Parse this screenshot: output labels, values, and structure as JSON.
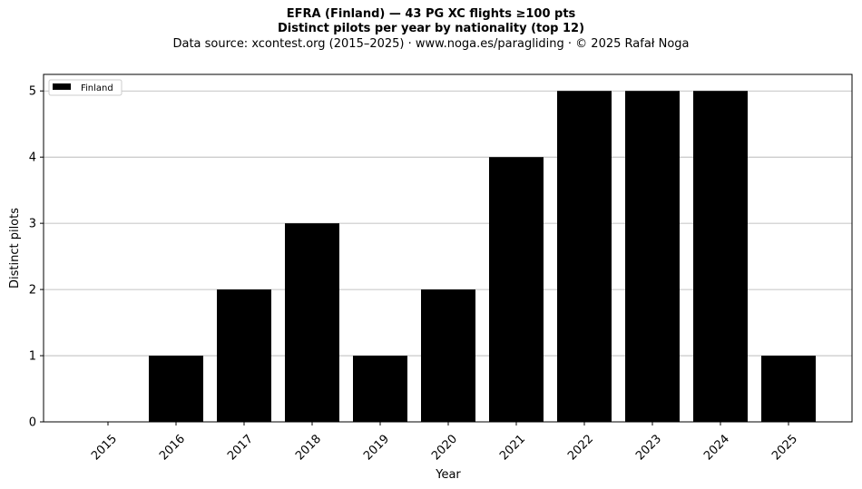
{
  "header": {
    "title": "EFRA (Finland)  —  43 PG XC flights ≥100 pts",
    "subtitle": "Distinct pilots per year by nationality (top 12)",
    "source": "Data source: xcontest.org (2015–2025)  ·  www.noga.es/paragliding  ·  © 2025 Rafał Noga"
  },
  "chart_data": {
    "type": "bar",
    "categories": [
      "2015",
      "2016",
      "2017",
      "2018",
      "2019",
      "2020",
      "2021",
      "2022",
      "2023",
      "2024",
      "2025"
    ],
    "series": [
      {
        "name": "Finland",
        "values": [
          0,
          1,
          2,
          3,
          1,
          2,
          4,
          5,
          5,
          5,
          1
        ],
        "color": "#000000"
      }
    ],
    "xlabel": "Year",
    "ylabel": "Distinct pilots",
    "ylim": [
      0,
      5.25
    ],
    "yticks": [
      "0",
      "1",
      "2",
      "3",
      "4",
      "5"
    ],
    "grid": "horizontal",
    "legend_position": "top-left",
    "xtick_rotation": "45°"
  }
}
